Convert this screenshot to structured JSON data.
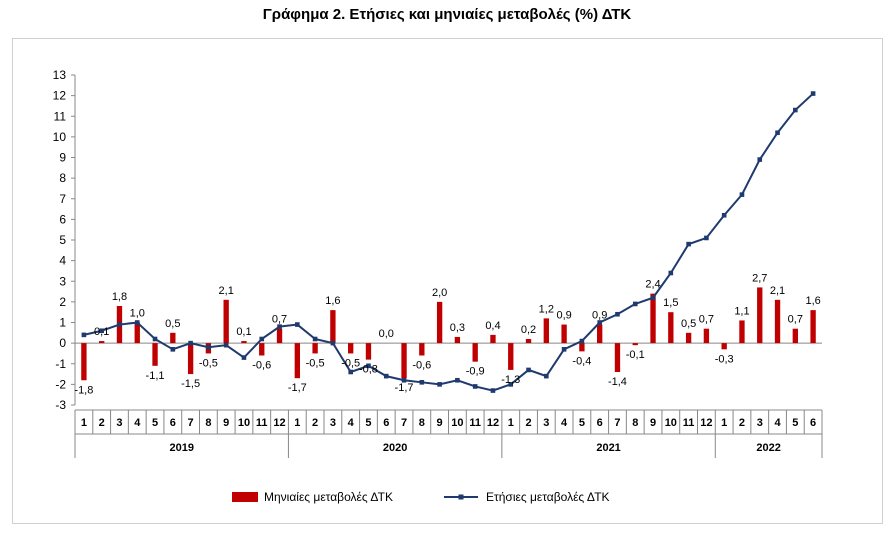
{
  "chart_data": {
    "title": "Γράφημα 2. Ετήσιες και μηνιαίες μεταβολές (%) ΔΤΚ",
    "type": "bar+line",
    "ylim": [
      -3,
      13
    ],
    "yticks": [
      -3,
      -2,
      -1,
      0,
      1,
      2,
      3,
      4,
      5,
      6,
      7,
      8,
      9,
      10,
      11,
      12,
      13
    ],
    "grid": false,
    "legend_position": "bottom",
    "months": [
      "1",
      "2",
      "3",
      "4",
      "5",
      "6",
      "7",
      "8",
      "9",
      "10",
      "11",
      "12",
      "1",
      "2",
      "3",
      "4",
      "5",
      "6",
      "7",
      "8",
      "9",
      "10",
      "11",
      "12",
      "1",
      "2",
      "3",
      "4",
      "5",
      "6",
      "7",
      "8",
      "9",
      "10",
      "11",
      "12",
      "1",
      "2",
      "3",
      "4",
      "5",
      "6"
    ],
    "years": [
      {
        "label": "2019",
        "count": 12
      },
      {
        "label": "2020",
        "count": 12
      },
      {
        "label": "2021",
        "count": 12
      },
      {
        "label": "2022",
        "count": 6
      }
    ],
    "series": [
      {
        "name": "Μηνιαίες μεταβολές ΔΤΚ",
        "kind": "bar",
        "color": "#c00000",
        "values": [
          -1.8,
          0.1,
          1.8,
          1.0,
          -1.1,
          0.5,
          -1.5,
          -0.5,
          2.1,
          0.1,
          -0.6,
          0.7,
          -1.7,
          -0.5,
          1.6,
          -0.5,
          -0.8,
          0.0,
          -1.7,
          -0.6,
          2.0,
          0.3,
          -0.9,
          0.4,
          -1.3,
          0.2,
          1.2,
          0.9,
          -0.4,
          0.9,
          -1.4,
          -0.1,
          2.4,
          1.5,
          0.5,
          0.7,
          -0.3,
          1.1,
          2.7,
          2.1,
          0.7,
          1.6
        ],
        "labels": [
          "-1,8",
          "0,1",
          "1,8",
          "1,0",
          "-1,1",
          "0,5",
          "-1,5",
          "-0,5",
          "2,1",
          "0,1",
          "-0,6",
          "0,7",
          "-1,7",
          "-0,5",
          "1,6",
          "-0,5",
          "-0,8",
          "0,0",
          "-1,7",
          "-0,6",
          "2,0",
          "0,3",
          "-0,9",
          "0,4",
          "-1,3",
          "0,2",
          "1,2",
          "0,9",
          "-0,4",
          "0,9",
          "-1,4",
          "-0,1",
          "2,4",
          "1,5",
          "0,5",
          "0,7",
          "-0,3",
          "1,1",
          "2,7",
          "2,1",
          "0,7",
          "1,6"
        ]
      },
      {
        "name": "Ετήσιες μεταβολές ΔΤΚ",
        "kind": "line",
        "color": "#1f3a6e",
        "values": [
          0.4,
          0.6,
          0.9,
          1.0,
          0.2,
          -0.3,
          0.0,
          -0.2,
          -0.1,
          -0.7,
          0.2,
          0.8,
          0.9,
          0.2,
          0.0,
          -1.4,
          -1.1,
          -1.6,
          -1.8,
          -1.9,
          -2.0,
          -1.8,
          -2.1,
          -2.3,
          -2.0,
          -1.3,
          -1.6,
          -0.3,
          0.1,
          1.0,
          1.4,
          1.9,
          2.2,
          3.4,
          4.8,
          5.1,
          6.2,
          7.2,
          8.9,
          10.2,
          11.3,
          12.1
        ]
      }
    ]
  },
  "legend": {
    "bars_label": "Μηνιαίες μεταβολές ΔΤΚ",
    "line_label": "Ετήσιες μεταβολές ΔΤΚ"
  }
}
